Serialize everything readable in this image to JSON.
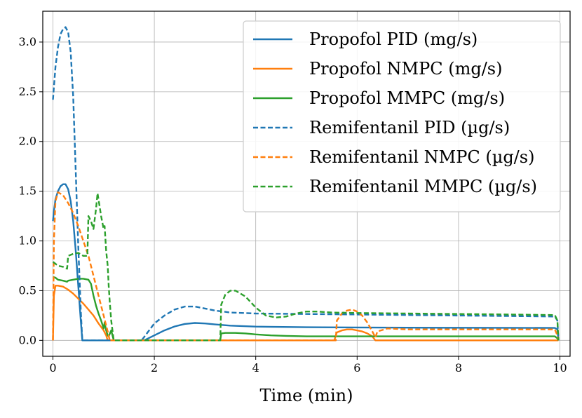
{
  "chart_data": {
    "type": "line",
    "title": "",
    "xlabel": "Time (min)",
    "ylabel": "",
    "xlim": [
      -0.2,
      10.2
    ],
    "ylim": [
      -0.16,
      3.31
    ],
    "xticks": [
      0,
      2,
      4,
      6,
      8,
      10
    ],
    "xtick_labels": [
      "0",
      "2",
      "4",
      "6",
      "8",
      "10"
    ],
    "yticks": [
      0.0,
      0.5,
      1.0,
      1.5,
      2.0,
      2.5,
      3.0
    ],
    "ytick_labels": [
      "0.0",
      "0.5",
      "1.0",
      "1.5",
      "2.0",
      "2.5",
      "3.0"
    ],
    "grid": true,
    "legend_position": "top-right",
    "series": [
      {
        "name": "Propofol PID (mg/s)",
        "color": "#1f77b4",
        "dash": "solid",
        "x": [
          0,
          0.02,
          0.05,
          0.1,
          0.15,
          0.2,
          0.25,
          0.3,
          0.35,
          0.4,
          0.45,
          0.5,
          0.55,
          0.58,
          0.6,
          1.0,
          1.5,
          1.8,
          2.0,
          2.2,
          2.4,
          2.6,
          2.8,
          3.0,
          3.2,
          3.5,
          4.0,
          5.0,
          6.0,
          7.0,
          8.0,
          9.0,
          9.9,
          9.95,
          9.97
        ],
        "y": [
          1.2,
          1.3,
          1.42,
          1.5,
          1.55,
          1.57,
          1.57,
          1.52,
          1.4,
          1.2,
          0.9,
          0.55,
          0.2,
          0,
          0,
          0,
          0,
          0,
          0.05,
          0.1,
          0.14,
          0.165,
          0.175,
          0.17,
          0.16,
          0.148,
          0.138,
          0.132,
          0.13,
          0.128,
          0.127,
          0.126,
          0.125,
          0.11,
          0
        ]
      },
      {
        "name": "Propofol NMPC (mg/s)",
        "color": "#ff7f0e",
        "dash": "solid",
        "x": [
          0,
          0.02,
          0.05,
          0.1,
          0.2,
          0.3,
          0.4,
          0.5,
          0.6,
          0.7,
          0.8,
          0.9,
          1.0,
          1.05,
          1.08,
          1.2,
          2.0,
          3.0,
          4.0,
          5.0,
          5.55,
          5.58,
          5.6,
          5.7,
          5.8,
          5.9,
          6.0,
          6.1,
          6.2,
          6.3,
          6.36,
          6.4,
          7.0,
          8.0,
          9.0,
          9.97
        ],
        "y": [
          0,
          0.45,
          0.55,
          0.55,
          0.54,
          0.51,
          0.47,
          0.42,
          0.37,
          0.31,
          0.25,
          0.17,
          0.1,
          0.05,
          0,
          0,
          0,
          0,
          0,
          0,
          0,
          0.05,
          0.08,
          0.1,
          0.11,
          0.11,
          0.1,
          0.09,
          0.07,
          0.04,
          0,
          0,
          0,
          0,
          0,
          0
        ]
      },
      {
        "name": "Propofol MMPC (mg/s)",
        "color": "#2ca02c",
        "dash": "solid",
        "x": [
          0,
          0.05,
          0.1,
          0.2,
          0.28,
          0.3,
          0.4,
          0.5,
          0.6,
          0.7,
          0.75,
          0.8,
          0.85,
          0.9,
          0.95,
          1.0,
          1.02,
          1.05,
          1.08,
          1.1,
          1.15,
          1.2,
          1.5,
          2.0,
          3.0,
          3.3,
          3.32,
          3.4,
          3.6,
          3.8,
          4.0,
          4.3,
          4.6,
          5.0,
          6.0,
          7.0,
          8.0,
          9.0,
          9.9,
          9.95,
          9.97
        ],
        "y": [
          0.64,
          0.63,
          0.61,
          0.6,
          0.59,
          0.6,
          0.61,
          0.62,
          0.62,
          0.61,
          0.57,
          0.45,
          0.35,
          0.27,
          0.2,
          0.12,
          0.18,
          0.1,
          0.05,
          0.04,
          0.1,
          0,
          0,
          0,
          0,
          0,
          0.07,
          0.075,
          0.075,
          0.07,
          0.06,
          0.05,
          0.045,
          0.04,
          0.04,
          0.04,
          0.04,
          0.04,
          0.04,
          0.02,
          0
        ]
      },
      {
        "name": "Remifentanil PID (µg/s)",
        "color": "#1f77b4",
        "dash": "dashed",
        "x": [
          0,
          0.05,
          0.1,
          0.15,
          0.2,
          0.25,
          0.3,
          0.35,
          0.4,
          0.45,
          0.5,
          0.55,
          0.58,
          0.6,
          1.0,
          1.5,
          1.75,
          2.0,
          2.2,
          2.4,
          2.6,
          2.8,
          3.0,
          3.2,
          3.5,
          4.0,
          5.0,
          6.0,
          7.0,
          8.0,
          9.0,
          9.9,
          9.95,
          9.97
        ],
        "y": [
          2.42,
          2.75,
          2.95,
          3.08,
          3.13,
          3.15,
          3.1,
          2.9,
          2.45,
          1.7,
          0.95,
          0.3,
          0,
          0,
          0,
          0,
          0,
          0.17,
          0.25,
          0.31,
          0.34,
          0.34,
          0.32,
          0.3,
          0.28,
          0.27,
          0.265,
          0.26,
          0.255,
          0.25,
          0.245,
          0.24,
          0.2,
          0
        ]
      },
      {
        "name": "Remifentanil NMPC (µg/s)",
        "color": "#ff7f0e",
        "dash": "dashed",
        "x": [
          0,
          0.02,
          0.05,
          0.1,
          0.2,
          0.3,
          0.4,
          0.5,
          0.6,
          0.7,
          0.8,
          0.9,
          1.0,
          1.05,
          1.1,
          1.12,
          1.2,
          2.0,
          3.0,
          4.0,
          5.0,
          5.58,
          5.6,
          5.7,
          5.8,
          5.9,
          6.0,
          6.1,
          6.2,
          6.3,
          6.36,
          6.4,
          6.6,
          7.0,
          8.0,
          9.0,
          9.9,
          9.95,
          9.97
        ],
        "y": [
          0,
          1.0,
          1.4,
          1.49,
          1.46,
          1.38,
          1.28,
          1.15,
          1.0,
          0.85,
          0.65,
          0.45,
          0.25,
          0.15,
          0.05,
          0,
          0,
          0,
          0,
          0,
          0,
          0,
          0.2,
          0.27,
          0.3,
          0.31,
          0.29,
          0.25,
          0.18,
          0.09,
          0.03,
          0.09,
          0.12,
          0.11,
          0.11,
          0.11,
          0.11,
          0.05,
          0
        ]
      },
      {
        "name": "Remifentanil MMPC (µg/s)",
        "color": "#2ca02c",
        "dash": "dashed",
        "x": [
          0,
          0.05,
          0.1,
          0.2,
          0.28,
          0.3,
          0.4,
          0.5,
          0.6,
          0.68,
          0.7,
          0.75,
          0.8,
          0.85,
          0.88,
          0.92,
          0.95,
          1.0,
          1.02,
          1.05,
          1.08,
          1.1,
          1.12,
          1.15,
          1.2,
          1.5,
          2.0,
          3.0,
          3.3,
          3.32,
          3.4,
          3.5,
          3.6,
          3.8,
          4.0,
          4.2,
          4.4,
          4.6,
          4.8,
          5.0,
          5.2,
          5.5,
          6.0,
          7.0,
          8.0,
          9.0,
          9.9,
          9.95,
          9.97
        ],
        "y": [
          0.79,
          0.77,
          0.75,
          0.74,
          0.72,
          0.85,
          0.87,
          0.88,
          0.85,
          0.85,
          1.25,
          1.2,
          1.12,
          1.32,
          1.48,
          1.35,
          1.25,
          1.12,
          1.15,
          0.9,
          0.75,
          0.55,
          0.4,
          0.2,
          0,
          0,
          0,
          0,
          0,
          0.36,
          0.46,
          0.5,
          0.5,
          0.44,
          0.33,
          0.25,
          0.23,
          0.24,
          0.27,
          0.29,
          0.29,
          0.28,
          0.275,
          0.27,
          0.265,
          0.26,
          0.255,
          0.2,
          0
        ]
      }
    ]
  }
}
